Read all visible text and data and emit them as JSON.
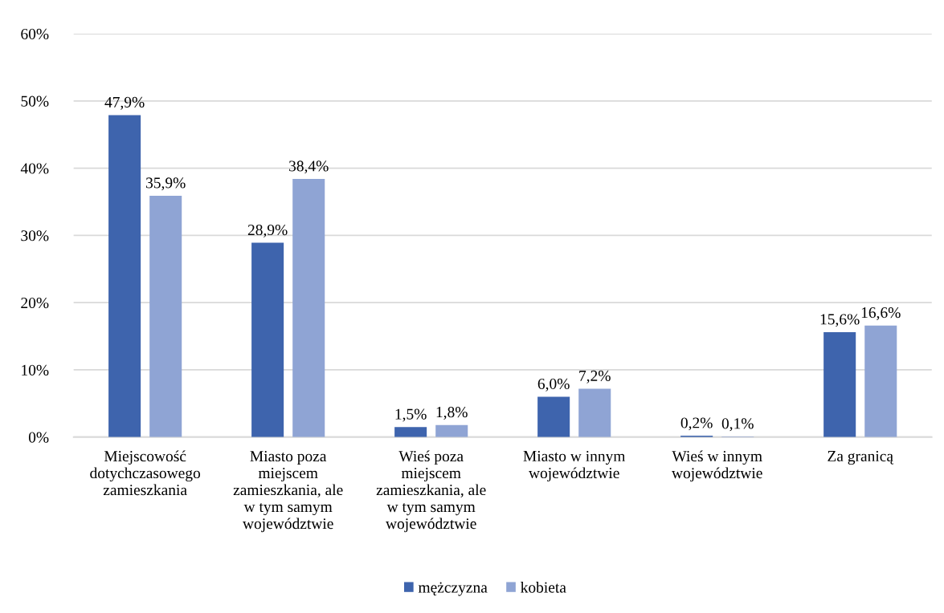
{
  "chart_data": {
    "type": "bar",
    "categories": [
      "Miejscowość\ndotychczasowego\nzamieszkania",
      "Miasto poza\nmiejscem\nzamieszkania, ale\nw tym samym\nwojewództwie",
      "Wieś poza\nmiejscem\nzamieszkania, ale\nw tym samym\nwojewództwie",
      "Miasto w innym\nwojewództwie",
      "Wieś w innym\nwojewództwie",
      "Za granicą"
    ],
    "series": [
      {
        "name": "mężczyzna",
        "color": "#3e64ad",
        "values": [
          47.9,
          28.9,
          1.5,
          6.0,
          0.2,
          15.6
        ],
        "value_labels": [
          "47,9%",
          "28,9%",
          "1,5%",
          "6,0%",
          "0,2%",
          "15,6%"
        ]
      },
      {
        "name": "kobieta",
        "color": "#8fa4d4",
        "values": [
          35.9,
          38.4,
          1.8,
          7.2,
          0.1,
          16.6
        ],
        "value_labels": [
          "35,9%",
          "38,4%",
          "1,8%",
          "7,2%",
          "0,1%",
          "16,6%"
        ]
      }
    ],
    "ylim": [
      0,
      60
    ],
    "yticks": [
      {
        "value": 0,
        "label": "0%"
      },
      {
        "value": 10,
        "label": "10%"
      },
      {
        "value": 20,
        "label": "20%"
      },
      {
        "value": 30,
        "label": "30%"
      },
      {
        "value": 40,
        "label": "40%"
      },
      {
        "value": 50,
        "label": "50%"
      },
      {
        "value": 60,
        "label": "60%"
      }
    ],
    "grid": "y",
    "legend": "bottom"
  }
}
